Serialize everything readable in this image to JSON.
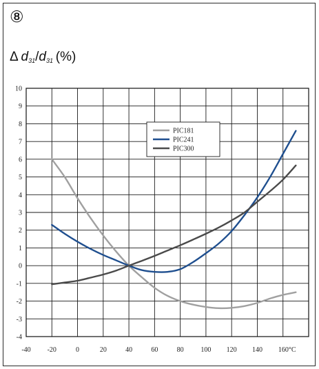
{
  "figure": {
    "badge": "⑧",
    "ylabel_delta": "Δ",
    "ylabel_d": "d",
    "ylabel_sub": "31",
    "ylabel_slash": "/",
    "ylabel_unit": "(%)"
  },
  "chart_data": {
    "type": "line",
    "title": "",
    "xlabel": "",
    "ylabel": "Δ d31/d31 (%)",
    "xlim": [
      -40,
      180
    ],
    "ylim": [
      -4,
      10
    ],
    "x_ticks": [
      "-40",
      "-20",
      "0",
      "20",
      "40",
      "60",
      "80",
      "100",
      "120",
      "140",
      "160°C"
    ],
    "x_tick_values": [
      -40,
      -20,
      0,
      20,
      40,
      60,
      80,
      100,
      120,
      140,
      160
    ],
    "y_ticks": [
      "-4",
      "-3",
      "-2",
      "-1",
      "0",
      "1",
      "2",
      "3",
      "4",
      "5",
      "6",
      "7",
      "8",
      "9",
      "10"
    ],
    "y_tick_values": [
      -4,
      -3,
      -2,
      -1,
      0,
      1,
      2,
      3,
      4,
      5,
      6,
      7,
      8,
      9,
      10
    ],
    "grid": true,
    "legend_position": "top-center",
    "series": [
      {
        "name": "PIC181",
        "color": "#a0a0a0",
        "x": [
          -20,
          -10,
          0,
          10,
          20,
          30,
          40,
          50,
          60,
          70,
          80,
          90,
          100,
          110,
          120,
          130,
          140,
          150,
          160,
          170
        ],
        "y": [
          6.0,
          5.0,
          3.8,
          2.7,
          1.7,
          0.8,
          0.0,
          -0.65,
          -1.25,
          -1.7,
          -2.0,
          -2.2,
          -2.33,
          -2.4,
          -2.38,
          -2.28,
          -2.1,
          -1.85,
          -1.65,
          -1.5
        ]
      },
      {
        "name": "PIC241",
        "color": "#1f4f8f",
        "x": [
          -20,
          -10,
          0,
          10,
          20,
          30,
          40,
          50,
          60,
          70,
          80,
          90,
          100,
          110,
          120,
          130,
          140,
          150,
          160,
          170
        ],
        "y": [
          2.3,
          1.8,
          1.35,
          0.95,
          0.6,
          0.3,
          0.0,
          -0.25,
          -0.35,
          -0.35,
          -0.2,
          0.2,
          0.7,
          1.25,
          1.95,
          2.85,
          3.85,
          5.0,
          6.3,
          7.6
        ]
      },
      {
        "name": "PIC300",
        "color": "#4a4a4a",
        "x": [
          -20,
          -10,
          0,
          10,
          20,
          30,
          40,
          50,
          60,
          70,
          80,
          90,
          100,
          110,
          120,
          130,
          140,
          150,
          160,
          170
        ],
        "y": [
          -1.05,
          -0.95,
          -0.85,
          -0.68,
          -0.5,
          -0.28,
          0.0,
          0.27,
          0.55,
          0.85,
          1.15,
          1.47,
          1.8,
          2.15,
          2.55,
          3.0,
          3.6,
          4.2,
          4.85,
          5.65
        ]
      }
    ]
  }
}
